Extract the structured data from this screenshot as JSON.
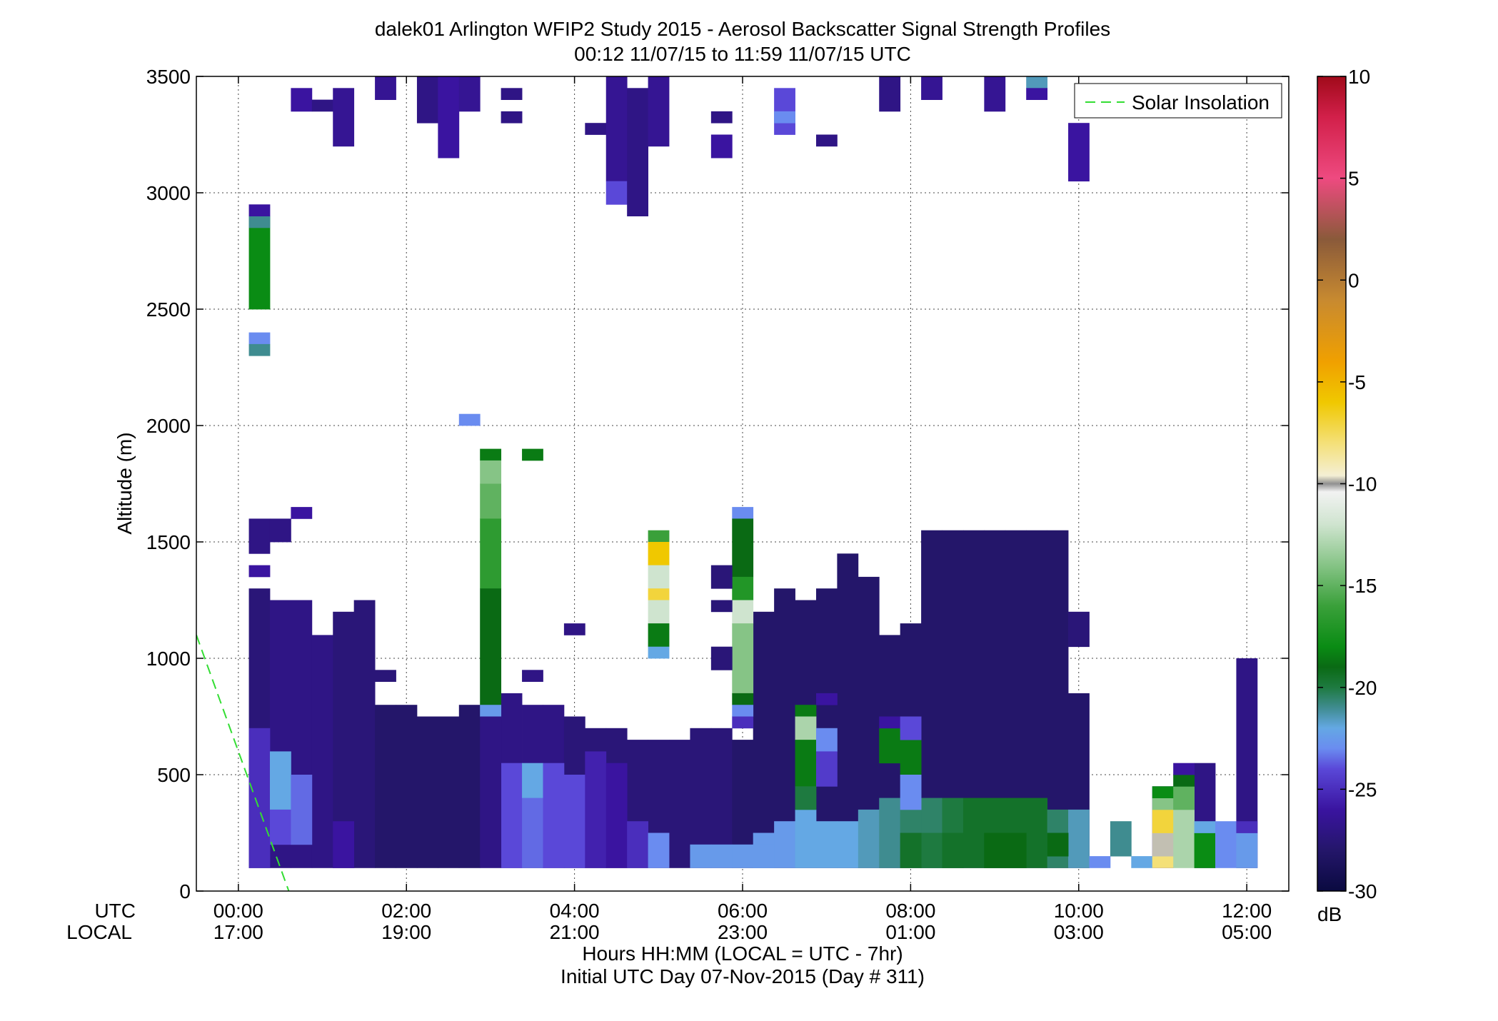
{
  "chart_data": {
    "type": "heatmap",
    "title": "dalek01 Arlington WFIP2 Study 2015 - Aerosol Backscatter Signal Strength Profiles",
    "subtitle": "00:12 11/07/15 to 11:59 11/07/15  UTC",
    "ylabel": "Altitude (m)",
    "xlabel": "Hours HH:MM  (LOCAL = UTC - 7hr)",
    "xlabel2": "Initial UTC Day 07-Nov-2015 (Day # 311)",
    "xrow_labels": [
      "UTC",
      "LOCAL"
    ],
    "xlim_hours": [
      -0.5,
      12.5
    ],
    "ylim": [
      0,
      3500
    ],
    "grid": true,
    "x_ticks": [
      {
        "hour": 0,
        "utc": "00:00",
        "local": "17:00"
      },
      {
        "hour": 2,
        "utc": "02:00",
        "local": "19:00"
      },
      {
        "hour": 4,
        "utc": "04:00",
        "local": "21:00"
      },
      {
        "hour": 6,
        "utc": "06:00",
        "local": "23:00"
      },
      {
        "hour": 8,
        "utc": "08:00",
        "local": "01:00"
      },
      {
        "hour": 10,
        "utc": "10:00",
        "local": "03:00"
      },
      {
        "hour": 12,
        "utc": "12:00",
        "local": "05:00"
      }
    ],
    "y_ticks": [
      0,
      500,
      1000,
      1500,
      2000,
      2500,
      3000,
      3500
    ],
    "y_tick_labels": [
      "0",
      "500",
      "1000",
      "1500",
      "2000",
      "2500",
      "3000",
      "3500"
    ],
    "colorbar": {
      "unit": "dB",
      "range": [
        -30,
        10
      ],
      "ticks": [
        10,
        5,
        0,
        -5,
        -10,
        -15,
        -20,
        -25,
        -30
      ],
      "tick_labels": [
        "10",
        "5",
        "0",
        "-5",
        "-10",
        "-15",
        "-20",
        "-25",
        "-30"
      ],
      "stops": [
        {
          "v": -30,
          "c": "#0a0a40"
        },
        {
          "v": -28,
          "c": "#24166a"
        },
        {
          "v": -26,
          "c": "#3a14a0"
        },
        {
          "v": -24,
          "c": "#5a48d8"
        },
        {
          "v": -23,
          "c": "#6a8cf0"
        },
        {
          "v": -22,
          "c": "#64a8e4"
        },
        {
          "v": -21,
          "c": "#3f8c90"
        },
        {
          "v": -20,
          "c": "#1e7a40"
        },
        {
          "v": -19,
          "c": "#0a6a14"
        },
        {
          "v": -18,
          "c": "#0a8c14"
        },
        {
          "v": -16,
          "c": "#3aa03a"
        },
        {
          "v": -14,
          "c": "#86c486"
        },
        {
          "v": -12,
          "c": "#cfe4cf"
        },
        {
          "v": -10.4,
          "c": "#f2f2f2"
        },
        {
          "v": -10,
          "c": "#909090"
        },
        {
          "v": -9.6,
          "c": "#f4efd4"
        },
        {
          "v": -8,
          "c": "#f4e078"
        },
        {
          "v": -6,
          "c": "#f0c800"
        },
        {
          "v": -4,
          "c": "#f0a000"
        },
        {
          "v": -1,
          "c": "#c88a30"
        },
        {
          "v": 2,
          "c": "#8a5a3a"
        },
        {
          "v": 5,
          "c": "#ee4a80"
        },
        {
          "v": 8,
          "c": "#d2204a"
        },
        {
          "v": 10,
          "c": "#a00a1a"
        }
      ]
    },
    "bin_minutes": 15,
    "bin_height_m": 50,
    "cells": [
      {
        "t": 0.25,
        "h0": 100,
        "h1": 1300,
        "v": -27.5
      },
      {
        "t": 0.5,
        "h0": 100,
        "h1": 1250,
        "v": -27
      },
      {
        "t": 0.75,
        "h0": 100,
        "h1": 1250,
        "v": -27
      },
      {
        "t": 1.0,
        "h0": 100,
        "h1": 1100,
        "v": -27
      },
      {
        "t": 1.25,
        "h0": 100,
        "h1": 1200,
        "v": -27.5
      },
      {
        "t": 1.5,
        "h0": 100,
        "h1": 1250,
        "v": -27.5
      },
      {
        "t": 1.75,
        "h0": 100,
        "h1": 800,
        "v": -28
      },
      {
        "t": 2.0,
        "h0": 100,
        "h1": 800,
        "v": -28
      },
      {
        "t": 2.25,
        "h0": 100,
        "h1": 750,
        "v": -28
      },
      {
        "t": 2.5,
        "h0": 100,
        "h1": 750,
        "v": -28
      },
      {
        "t": 2.75,
        "h0": 100,
        "h1": 800,
        "v": -28
      },
      {
        "t": 3.25,
        "h0": 100,
        "h1": 850,
        "v": -27
      },
      {
        "t": 3.5,
        "h0": 100,
        "h1": 800,
        "v": -27
      },
      {
        "t": 3.75,
        "h0": 100,
        "h1": 800,
        "v": -27
      },
      {
        "t": 4.0,
        "h0": 100,
        "h1": 750,
        "v": -27.5
      },
      {
        "t": 4.25,
        "h0": 100,
        "h1": 700,
        "v": -27.5
      },
      {
        "t": 4.5,
        "h0": 100,
        "h1": 700,
        "v": -27.5
      },
      {
        "t": 4.75,
        "h0": 100,
        "h1": 650,
        "v": -27.5
      },
      {
        "t": 5.0,
        "h0": 100,
        "h1": 650,
        "v": -27.5
      },
      {
        "t": 5.25,
        "h0": 100,
        "h1": 650,
        "v": -27.5
      },
      {
        "t": 5.5,
        "h0": 100,
        "h1": 700,
        "v": -27.5
      },
      {
        "t": 5.75,
        "h0": 100,
        "h1": 700,
        "v": -27.5
      },
      {
        "t": 6.0,
        "h0": 100,
        "h1": 650,
        "v": -28
      },
      {
        "t": 6.25,
        "h0": 100,
        "h1": 1200,
        "v": -28
      },
      {
        "t": 6.5,
        "h0": 100,
        "h1": 1300,
        "v": -28
      },
      {
        "t": 6.75,
        "h0": 100,
        "h1": 1250,
        "v": -28
      },
      {
        "t": 7.0,
        "h0": 100,
        "h1": 1300,
        "v": -28
      },
      {
        "t": 7.25,
        "h0": 100,
        "h1": 1450,
        "v": -28
      },
      {
        "t": 7.5,
        "h0": 100,
        "h1": 1350,
        "v": -28
      },
      {
        "t": 7.75,
        "h0": 100,
        "h1": 1100,
        "v": -28
      },
      {
        "t": 8.0,
        "h0": 100,
        "h1": 1150,
        "v": -28
      },
      {
        "t": 8.25,
        "h0": 100,
        "h1": 1550,
        "v": -28
      },
      {
        "t": 8.5,
        "h0": 100,
        "h1": 1550,
        "v": -28
      },
      {
        "t": 8.75,
        "h0": 100,
        "h1": 1550,
        "v": -28
      },
      {
        "t": 9.0,
        "h0": 100,
        "h1": 1550,
        "v": -28
      },
      {
        "t": 9.25,
        "h0": 100,
        "h1": 1550,
        "v": -28
      },
      {
        "t": 9.5,
        "h0": 100,
        "h1": 1550,
        "v": -28
      },
      {
        "t": 9.75,
        "h0": 100,
        "h1": 1550,
        "v": -28
      },
      {
        "t": 10.0,
        "h0": 100,
        "h1": 850,
        "v": -28
      },
      {
        "t": 10.5,
        "h0": 150,
        "h1": 300,
        "v": -21
      },
      {
        "t": 11.0,
        "h0": 100,
        "h1": 450,
        "v": -26
      },
      {
        "t": 11.5,
        "h0": 100,
        "h1": 550,
        "v": -27
      },
      {
        "t": 12.0,
        "h0": 100,
        "h1": 1000,
        "v": -27
      },
      {
        "t": 0.25,
        "h0": 100,
        "h1": 700,
        "v": -25
      },
      {
        "t": 0.5,
        "h0": 350,
        "h1": 600,
        "v": -22
      },
      {
        "t": 0.5,
        "h0": 200,
        "h1": 350,
        "v": -24
      },
      {
        "t": 0.75,
        "h0": 200,
        "h1": 500,
        "v": -23.5
      },
      {
        "t": 1.25,
        "h0": 100,
        "h1": 300,
        "v": -26
      },
      {
        "t": 3.25,
        "h0": 100,
        "h1": 550,
        "v": -24
      },
      {
        "t": 3.5,
        "h0": 400,
        "h1": 550,
        "v": -22
      },
      {
        "t": 3.5,
        "h0": 100,
        "h1": 400,
        "v": -23.5
      },
      {
        "t": 3.75,
        "h0": 100,
        "h1": 550,
        "v": -24
      },
      {
        "t": 4.0,
        "h0": 100,
        "h1": 500,
        "v": -24
      },
      {
        "t": 4.25,
        "h0": 100,
        "h1": 600,
        "v": -25.5
      },
      {
        "t": 4.5,
        "h0": 100,
        "h1": 550,
        "v": -26
      },
      {
        "t": 4.75,
        "h0": 100,
        "h1": 300,
        "v": -25
      },
      {
        "t": 5.0,
        "h0": 100,
        "h1": 250,
        "v": -23
      },
      {
        "t": 5.5,
        "h0": 100,
        "h1": 200,
        "v": -22.5
      },
      {
        "t": 5.75,
        "h0": 100,
        "h1": 200,
        "v": -22.5
      },
      {
        "t": 6.0,
        "h0": 100,
        "h1": 200,
        "v": -22.5
      },
      {
        "t": 6.25,
        "h0": 100,
        "h1": 250,
        "v": -22.5
      },
      {
        "t": 6.5,
        "h0": 100,
        "h1": 300,
        "v": -22.5
      },
      {
        "t": 6.75,
        "h0": 100,
        "h1": 350,
        "v": -22
      },
      {
        "t": 7.0,
        "h0": 100,
        "h1": 300,
        "v": -22
      },
      {
        "t": 7.25,
        "h0": 100,
        "h1": 300,
        "v": -22
      },
      {
        "t": 7.5,
        "h0": 100,
        "h1": 350,
        "v": -21.5
      },
      {
        "t": 7.75,
        "h0": 100,
        "h1": 400,
        "v": -21
      },
      {
        "t": 8.0,
        "h0": 100,
        "h1": 400,
        "v": -20.5
      },
      {
        "t": 8.25,
        "h0": 100,
        "h1": 400,
        "v": -20.5
      },
      {
        "t": 8.5,
        "h0": 100,
        "h1": 400,
        "v": -20
      },
      {
        "t": 8.75,
        "h0": 100,
        "h1": 400,
        "v": -19.5
      },
      {
        "t": 9.0,
        "h0": 100,
        "h1": 400,
        "v": -19.5
      },
      {
        "t": 9.25,
        "h0": 100,
        "h1": 400,
        "v": -19.5
      },
      {
        "t": 9.5,
        "h0": 100,
        "h1": 400,
        "v": -19.5
      },
      {
        "t": 9.75,
        "h0": 100,
        "h1": 350,
        "v": -20.5
      },
      {
        "t": 10.0,
        "h0": 100,
        "h1": 350,
        "v": -21.5
      },
      {
        "t": 10.25,
        "h0": 100,
        "h1": 150,
        "v": -23
      },
      {
        "t": 10.75,
        "h0": 100,
        "h1": 150,
        "v": -22
      },
      {
        "t": 11.0,
        "h0": 100,
        "h1": 150,
        "v": -8
      },
      {
        "t": 11.0,
        "h0": 150,
        "h1": 250,
        "v": -9.8
      },
      {
        "t": 11.0,
        "h0": 250,
        "h1": 350,
        "v": -7
      },
      {
        "t": 11.0,
        "h0": 350,
        "h1": 400,
        "v": -14
      },
      {
        "t": 11.0,
        "h0": 400,
        "h1": 450,
        "v": -18
      },
      {
        "t": 11.25,
        "h0": 100,
        "h1": 350,
        "v": -13
      },
      {
        "t": 11.25,
        "h0": 350,
        "h1": 450,
        "v": -15
      },
      {
        "t": 11.25,
        "h0": 450,
        "h1": 500,
        "v": -19
      },
      {
        "t": 11.25,
        "h0": 500,
        "h1": 550,
        "v": -26
      },
      {
        "t": 11.5,
        "h0": 100,
        "h1": 250,
        "v": -18
      },
      {
        "t": 11.5,
        "h0": 250,
        "h1": 300,
        "v": -22
      },
      {
        "t": 11.75,
        "h0": 100,
        "h1": 300,
        "v": -23
      },
      {
        "t": 12.0,
        "h0": 100,
        "h1": 250,
        "v": -22.5
      },
      {
        "t": 12.0,
        "h0": 250,
        "h1": 300,
        "v": -25
      },
      {
        "t": 6.25,
        "h0": 100,
        "h1": 200,
        "v": -22.5
      },
      {
        "t": 3.0,
        "h0": 1850,
        "h1": 1900,
        "v": -18.5
      },
      {
        "t": 3.0,
        "h0": 1750,
        "h1": 1850,
        "v": -14
      },
      {
        "t": 3.0,
        "h0": 1600,
        "h1": 1750,
        "v": -15
      },
      {
        "t": 3.0,
        "h0": 1300,
        "h1": 1600,
        "v": -16.5
      },
      {
        "t": 3.0,
        "h0": 800,
        "h1": 1300,
        "v": -19
      },
      {
        "t": 3.0,
        "h0": 750,
        "h1": 800,
        "v": -22.5
      },
      {
        "t": 3.0,
        "h0": 100,
        "h1": 750,
        "v": -27
      },
      {
        "t": 3.5,
        "h0": 1850,
        "h1": 1900,
        "v": -18.5
      },
      {
        "t": 5.0,
        "h0": 1500,
        "h1": 1550,
        "v": -16
      },
      {
        "t": 5.0,
        "h0": 1400,
        "h1": 1500,
        "v": -6
      },
      {
        "t": 5.0,
        "h0": 1300,
        "h1": 1400,
        "v": -12
      },
      {
        "t": 5.0,
        "h0": 1250,
        "h1": 1300,
        "v": -7
      },
      {
        "t": 5.0,
        "h0": 1150,
        "h1": 1250,
        "v": -12
      },
      {
        "t": 5.0,
        "h0": 1050,
        "h1": 1150,
        "v": -18.5
      },
      {
        "t": 5.0,
        "h0": 1000,
        "h1": 1050,
        "v": -22
      },
      {
        "t": 6.0,
        "h0": 1600,
        "h1": 1650,
        "v": -23
      },
      {
        "t": 6.0,
        "h0": 1350,
        "h1": 1600,
        "v": -19
      },
      {
        "t": 6.0,
        "h0": 1250,
        "h1": 1350,
        "v": -17
      },
      {
        "t": 6.0,
        "h0": 1150,
        "h1": 1250,
        "v": -12
      },
      {
        "t": 6.0,
        "h0": 850,
        "h1": 1150,
        "v": -14
      },
      {
        "t": 6.0,
        "h0": 800,
        "h1": 850,
        "v": -19
      },
      {
        "t": 6.0,
        "h0": 750,
        "h1": 800,
        "v": -23
      },
      {
        "t": 6.0,
        "h0": 700,
        "h1": 750,
        "v": -25
      },
      {
        "t": 6.75,
        "h0": 750,
        "h1": 800,
        "v": -18.5
      },
      {
        "t": 6.75,
        "h0": 650,
        "h1": 750,
        "v": -13
      },
      {
        "t": 6.75,
        "h0": 450,
        "h1": 650,
        "v": -18.5
      },
      {
        "t": 6.75,
        "h0": 350,
        "h1": 450,
        "v": -20
      },
      {
        "t": 7.0,
        "h0": 600,
        "h1": 700,
        "v": -23
      },
      {
        "t": 7.0,
        "h0": 450,
        "h1": 600,
        "v": -24.5
      },
      {
        "t": 7.75,
        "h0": 550,
        "h1": 700,
        "v": -18.5
      },
      {
        "t": 8.0,
        "h0": 500,
        "h1": 650,
        "v": -18.5
      },
      {
        "t": 7.75,
        "h0": 700,
        "h1": 750,
        "v": -26
      },
      {
        "t": 8.0,
        "h0": 650,
        "h1": 750,
        "v": -24
      },
      {
        "t": 8.0,
        "h0": 350,
        "h1": 500,
        "v": -23
      },
      {
        "t": 8.25,
        "h0": 100,
        "h1": 250,
        "v": -20
      },
      {
        "t": 8.0,
        "h0": 100,
        "h1": 250,
        "v": -19.5
      },
      {
        "t": 8.5,
        "h0": 100,
        "h1": 250,
        "v": -19.5
      },
      {
        "t": 9.0,
        "h0": 100,
        "h1": 250,
        "v": -19
      },
      {
        "t": 9.25,
        "h0": 100,
        "h1": 250,
        "v": -19
      },
      {
        "t": 9.75,
        "h0": 150,
        "h1": 250,
        "v": -19
      },
      {
        "t": 0.25,
        "h0": 2500,
        "h1": 2900,
        "v": -18
      },
      {
        "t": 0.25,
        "h0": 2850,
        "h1": 2900,
        "v": -21
      },
      {
        "t": 0.25,
        "h0": 2900,
        "h1": 2950,
        "v": -26
      },
      {
        "t": 0.25,
        "h0": 2350,
        "h1": 2400,
        "v": -23
      },
      {
        "t": 0.25,
        "h0": 2300,
        "h1": 2350,
        "v": -21
      },
      {
        "t": 2.75,
        "h0": 2000,
        "h1": 2050,
        "v": -23
      },
      {
        "t": 0.25,
        "h0": 1450,
        "h1": 1600,
        "v": -27
      },
      {
        "t": 0.5,
        "h0": 1500,
        "h1": 1600,
        "v": -27
      },
      {
        "t": 0.75,
        "h0": 1600,
        "h1": 1650,
        "v": -26
      },
      {
        "t": 0.25,
        "h0": 1350,
        "h1": 1400,
        "v": -26
      },
      {
        "t": 4.0,
        "h0": 1100,
        "h1": 1150,
        "v": -27
      },
      {
        "t": 3.5,
        "h0": 900,
        "h1": 950,
        "v": -27
      },
      {
        "t": 1.75,
        "h0": 900,
        "h1": 950,
        "v": -27.5
      },
      {
        "t": 7.0,
        "h0": 800,
        "h1": 850,
        "v": -26
      },
      {
        "t": 5.75,
        "h0": 950,
        "h1": 1050,
        "v": -27.5
      },
      {
        "t": 5.75,
        "h0": 1200,
        "h1": 1250,
        "v": -27.5
      },
      {
        "t": 5.75,
        "h0": 1300,
        "h1": 1400,
        "v": -27.5
      },
      {
        "t": 10.0,
        "h0": 1050,
        "h1": 1200,
        "v": -27.5
      },
      {
        "t": 10.0,
        "h0": 3050,
        "h1": 3300,
        "v": -26
      },
      {
        "t": 0.75,
        "h0": 3350,
        "h1": 3450,
        "v": -26
      },
      {
        "t": 1.0,
        "h0": 3350,
        "h1": 3400,
        "v": -27
      },
      {
        "t": 1.25,
        "h0": 3200,
        "h1": 3450,
        "v": -26.5
      },
      {
        "t": 1.75,
        "h0": 3400,
        "h1": 3500,
        "v": -26.5
      },
      {
        "t": 2.25,
        "h0": 3300,
        "h1": 3500,
        "v": -27
      },
      {
        "t": 2.5,
        "h0": 3150,
        "h1": 3500,
        "v": -26
      },
      {
        "t": 2.75,
        "h0": 3350,
        "h1": 3500,
        "v": -26.5
      },
      {
        "t": 3.25,
        "h0": 3300,
        "h1": 3350,
        "v": -27
      },
      {
        "t": 3.25,
        "h0": 3400,
        "h1": 3450,
        "v": -27
      },
      {
        "t": 4.25,
        "h0": 3250,
        "h1": 3300,
        "v": -27
      },
      {
        "t": 4.5,
        "h0": 3050,
        "h1": 3500,
        "v": -26.5
      },
      {
        "t": 4.5,
        "h0": 2950,
        "h1": 3050,
        "v": -24
      },
      {
        "t": 4.75,
        "h0": 2900,
        "h1": 3450,
        "v": -27
      },
      {
        "t": 5.0,
        "h0": 3200,
        "h1": 3500,
        "v": -26.5
      },
      {
        "t": 5.75,
        "h0": 3300,
        "h1": 3350,
        "v": -27
      },
      {
        "t": 5.75,
        "h0": 3150,
        "h1": 3250,
        "v": -26
      },
      {
        "t": 6.5,
        "h0": 3250,
        "h1": 3450,
        "v": -24
      },
      {
        "t": 6.5,
        "h0": 3300,
        "h1": 3350,
        "v": -23
      },
      {
        "t": 7.0,
        "h0": 3200,
        "h1": 3250,
        "v": -27
      },
      {
        "t": 7.75,
        "h0": 3350,
        "h1": 3500,
        "v": -27
      },
      {
        "t": 8.25,
        "h0": 3400,
        "h1": 3500,
        "v": -26.5
      },
      {
        "t": 9.0,
        "h0": 3350,
        "h1": 3500,
        "v": -26.5
      },
      {
        "t": 9.5,
        "h0": 3450,
        "h1": 3500,
        "v": -21.5
      },
      {
        "t": 9.5,
        "h0": 3400,
        "h1": 3450,
        "v": -26
      }
    ],
    "series": [
      {
        "name": "Solar Insolation",
        "style": "dashed",
        "color": "#33dd33",
        "x": [
          -0.5,
          0.6
        ],
        "y": [
          1100,
          0
        ]
      }
    ],
    "legend": {
      "position": "top-right",
      "entries": [
        "Solar Insolation"
      ]
    }
  }
}
